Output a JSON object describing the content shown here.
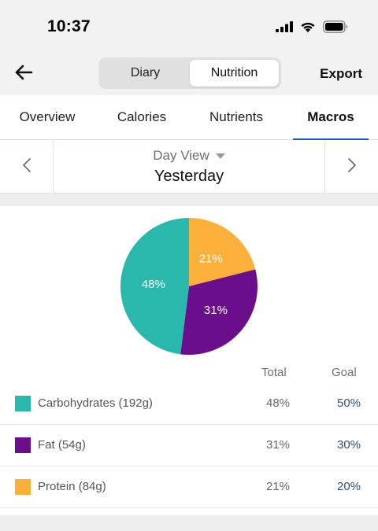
{
  "status_bar": {
    "time": "10:37"
  },
  "nav": {
    "segments": [
      {
        "label": "Diary",
        "active": false
      },
      {
        "label": "Nutrition",
        "active": true
      }
    ],
    "export_label": "Export"
  },
  "tabs": [
    {
      "label": "Overview",
      "active": false
    },
    {
      "label": "Calories",
      "active": false
    },
    {
      "label": "Nutrients",
      "active": false
    },
    {
      "label": "Macros",
      "active": true
    }
  ],
  "day": {
    "view_label": "Day View",
    "title": "Yesterday"
  },
  "table": {
    "total_header": "Total",
    "goal_header": "Goal",
    "rows": [
      {
        "label": "Carbohydrates (192g)",
        "total": "48%",
        "goal": "50%",
        "color": "#2bb8ac"
      },
      {
        "label": "Fat (54g)",
        "total": "31%",
        "goal": "30%",
        "color": "#6b0e8c"
      },
      {
        "label": "Protein (84g)",
        "total": "21%",
        "goal": "20%",
        "color": "#fbb03b"
      }
    ]
  },
  "chart_data": {
    "type": "pie",
    "categories": [
      "Protein",
      "Fat",
      "Carbohydrates"
    ],
    "values": [
      21,
      31,
      48
    ],
    "labels": [
      "21%",
      "31%",
      "48%"
    ],
    "colors": [
      "#fbb03b",
      "#6b0e8c",
      "#2bb8ac"
    ],
    "start": "12 o'clock, clockwise"
  },
  "colors": {
    "accent": "#1a5cc2",
    "goal_text": "#2b4f82"
  },
  "icons": {
    "back": "arrow-left-icon",
    "prev": "chevron-left-icon",
    "next": "chevron-right-icon",
    "dropdown": "caret-down-icon",
    "signal": "signal-icon",
    "wifi": "wifi-icon",
    "battery": "battery-icon"
  }
}
